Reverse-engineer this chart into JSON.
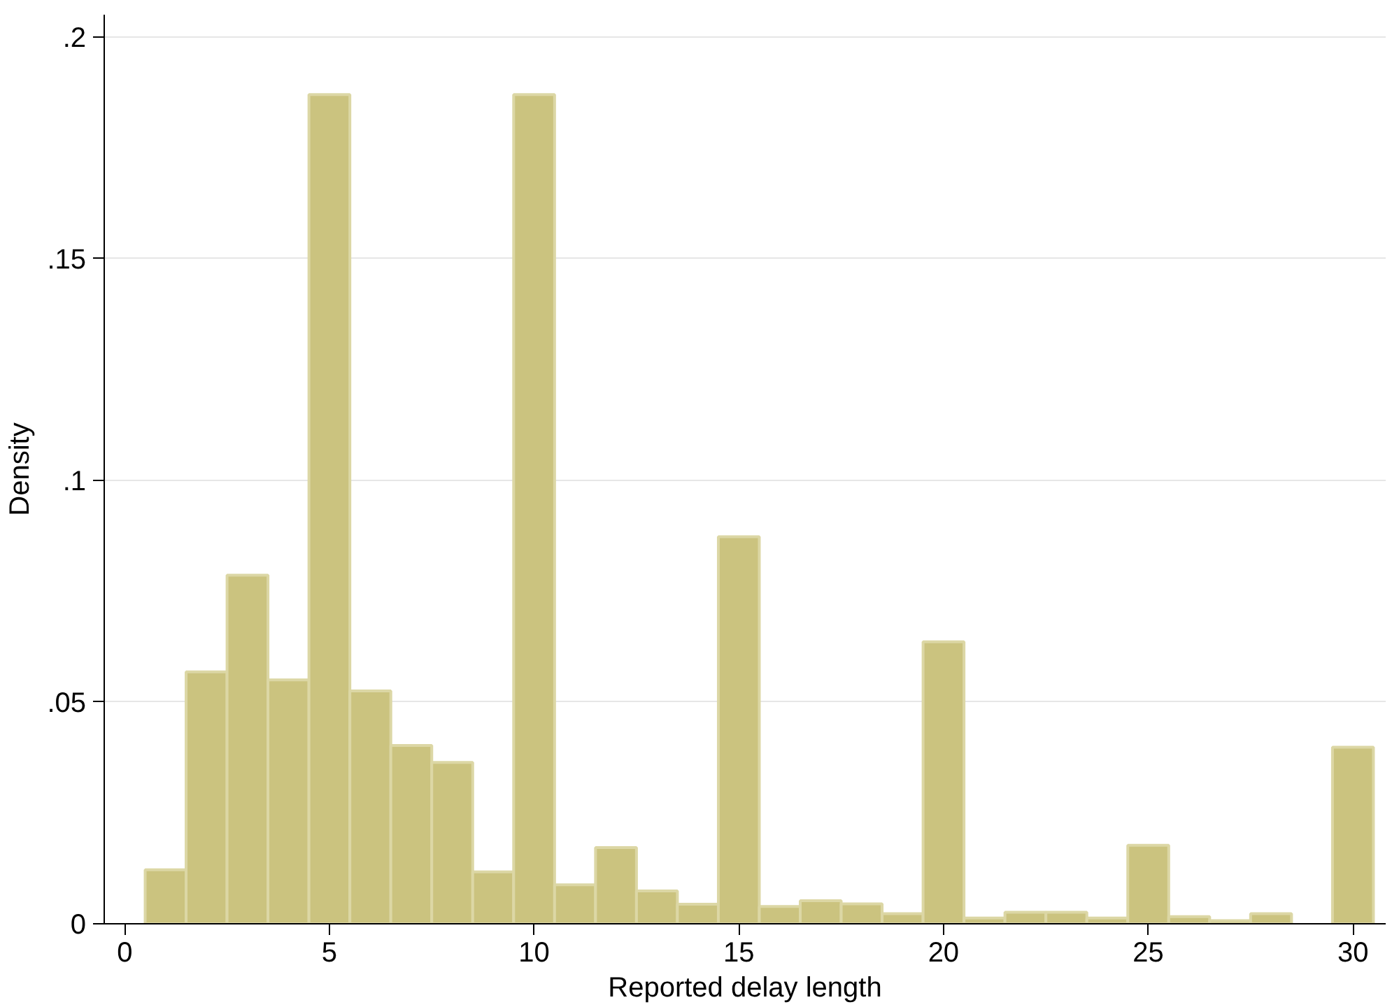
{
  "chart_data": {
    "type": "histogram",
    "xlabel": "Reported delay length",
    "ylabel": "Density",
    "bins": [
      0.5,
      1.5,
      2.5,
      3.5,
      4.5,
      5.5,
      6.5,
      7.5,
      8.5,
      9.5,
      10.5,
      11.5,
      12.5,
      13.5,
      14.5,
      15.5,
      16.5,
      17.5,
      18.5,
      19.5,
      20.5,
      21.5,
      22.5,
      23.5,
      24.5,
      25.5,
      26.5,
      27.5,
      28.5,
      29.5,
      30.5
    ],
    "values": [
      0.0122,
      0.0568,
      0.0786,
      0.055,
      0.187,
      0.0525,
      0.0402,
      0.0364,
      0.0117,
      0.187,
      0.0088,
      0.0172,
      0.0074,
      0.0044,
      0.0873,
      0.0039,
      0.0052,
      0.0045,
      0.0023,
      0.0636,
      0.0013,
      0.0026,
      0.0026,
      0.0013,
      0.0177,
      0.0016,
      0.0007,
      0.0023,
      0,
      0.0398
    ],
    "color": "#cbc37f",
    "xlim": [
      -0.5,
      30.8
    ],
    "ylim": [
      0,
      0.205
    ],
    "xticks": [
      0,
      5,
      10,
      15,
      20,
      25,
      30
    ],
    "yticks": [
      0,
      {
        "value": 0.05,
        "label": ".05"
      },
      {
        "value": 0.1,
        "label": ".1"
      },
      {
        "value": 0.15,
        "label": ".15"
      },
      {
        "value": 0.2,
        "label": ".2"
      }
    ],
    "grid": "y"
  }
}
